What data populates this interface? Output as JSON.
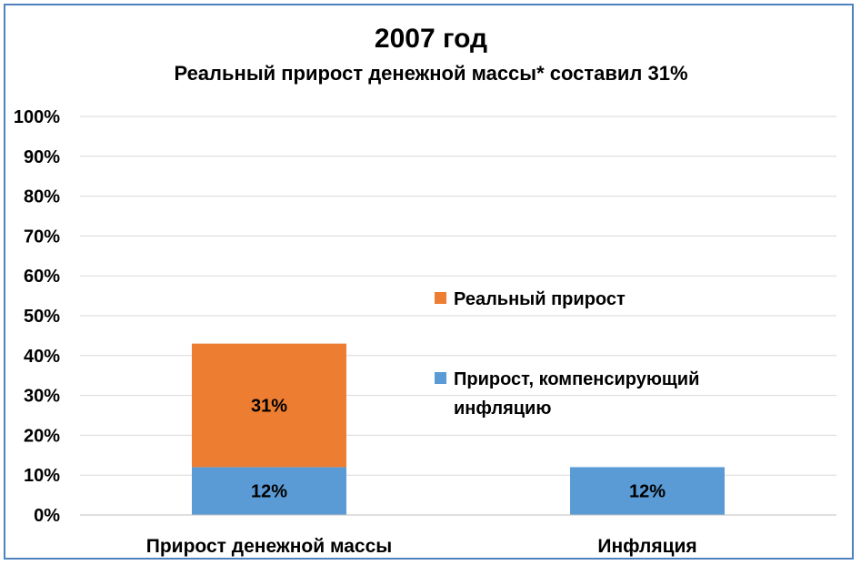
{
  "chart_data": {
    "type": "bar",
    "stacked": true,
    "title": "2007 год",
    "subtitle": "Реальный прирост денежной массы* составил 31%",
    "categories": [
      "Прирост денежной массы",
      "Инфляция"
    ],
    "series": [
      {
        "name": "Прирост, компенсирующий инфляцию",
        "values": [
          12,
          12
        ],
        "labels": [
          "12%",
          "12%"
        ],
        "color": "#5b9bd5"
      },
      {
        "name": "Реальный прирост",
        "values": [
          31,
          0
        ],
        "labels": [
          "31%",
          ""
        ],
        "color": "#ed7d31"
      }
    ],
    "yticks": [
      "0%",
      "10%",
      "20%",
      "30%",
      "40%",
      "50%",
      "60%",
      "70%",
      "80%",
      "90%",
      "100%"
    ],
    "ylim": [
      0,
      100
    ],
    "grid": true,
    "legend": {
      "position": "right",
      "entries": [
        {
          "lines": [
            "Реальный прирост"
          ],
          "color": "#ed7d31"
        },
        {
          "lines": [
            "Прирост, компенсирующий",
            "инфляцию"
          ],
          "color": "#5b9bd5"
        }
      ]
    }
  }
}
